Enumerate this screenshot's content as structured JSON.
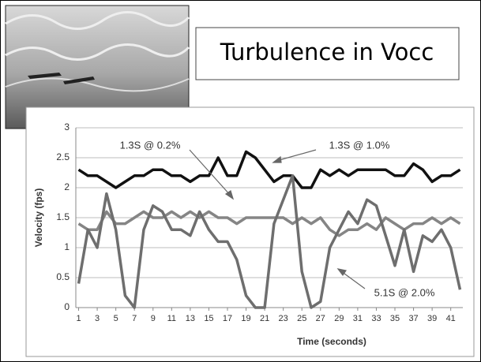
{
  "chart_data": {
    "type": "line",
    "title": "Turbulence in Vocc",
    "x_label": "Time (seconds)",
    "y_label": "Velocity (fps)",
    "x": [
      1,
      2,
      3,
      4,
      5,
      6,
      7,
      8,
      9,
      10,
      11,
      12,
      13,
      14,
      15,
      16,
      17,
      18,
      19,
      20,
      21,
      22,
      23,
      24,
      25,
      26,
      27,
      28,
      29,
      30,
      31,
      32,
      33,
      34,
      35,
      36,
      37,
      38,
      39,
      40,
      41,
      42
    ],
    "xlim": [
      0.7,
      42.3
    ],
    "xticks": [
      1,
      3,
      5,
      7,
      9,
      11,
      13,
      15,
      17,
      19,
      21,
      23,
      25,
      27,
      29,
      31,
      33,
      35,
      37,
      39,
      41
    ],
    "ylim": [
      0,
      3
    ],
    "yticks": [
      0,
      0.5,
      1,
      1.5,
      2,
      2.5,
      3
    ],
    "grid": true,
    "series": [
      {
        "name": "1.3S @ 1.0%",
        "color": "#111111",
        "values": [
          2.3,
          2.2,
          2.2,
          2.1,
          2.0,
          2.1,
          2.2,
          2.2,
          2.3,
          2.3,
          2.2,
          2.2,
          2.1,
          2.2,
          2.2,
          2.5,
          2.2,
          2.2,
          2.6,
          2.5,
          2.3,
          2.1,
          2.2,
          2.2,
          2.0,
          2.0,
          2.3,
          2.2,
          2.3,
          2.2,
          2.3,
          2.3,
          2.3,
          2.3,
          2.2,
          2.2,
          2.4,
          2.3,
          2.1,
          2.2,
          2.2,
          2.3
        ]
      },
      {
        "name": "1.3S @ 0.2%",
        "color": "#858585",
        "values": [
          1.4,
          1.3,
          1.3,
          1.6,
          1.4,
          1.4,
          1.5,
          1.6,
          1.5,
          1.5,
          1.6,
          1.5,
          1.6,
          1.5,
          1.6,
          1.5,
          1.5,
          1.4,
          1.5,
          1.5,
          1.5,
          1.5,
          1.5,
          1.4,
          1.5,
          1.4,
          1.5,
          1.3,
          1.2,
          1.3,
          1.3,
          1.4,
          1.3,
          1.5,
          1.4,
          1.3,
          1.4,
          1.4,
          1.5,
          1.4,
          1.5,
          1.4
        ]
      },
      {
        "name": "5.1S @ 2.0%",
        "color": "#6e6e6e",
        "values": [
          0.4,
          1.3,
          1.0,
          1.9,
          1.3,
          0.2,
          0,
          1.3,
          1.7,
          1.6,
          1.3,
          1.3,
          1.2,
          1.6,
          1.3,
          1.1,
          1.1,
          0.8,
          0.2,
          0,
          0,
          1.4,
          1.8,
          2.2,
          0.6,
          0,
          0.1,
          1.0,
          1.3,
          1.6,
          1.4,
          1.8,
          1.7,
          1.2,
          0.7,
          1.3,
          0.6,
          1.2,
          1.1,
          1.3,
          1.0,
          0.3
        ]
      }
    ]
  }
}
